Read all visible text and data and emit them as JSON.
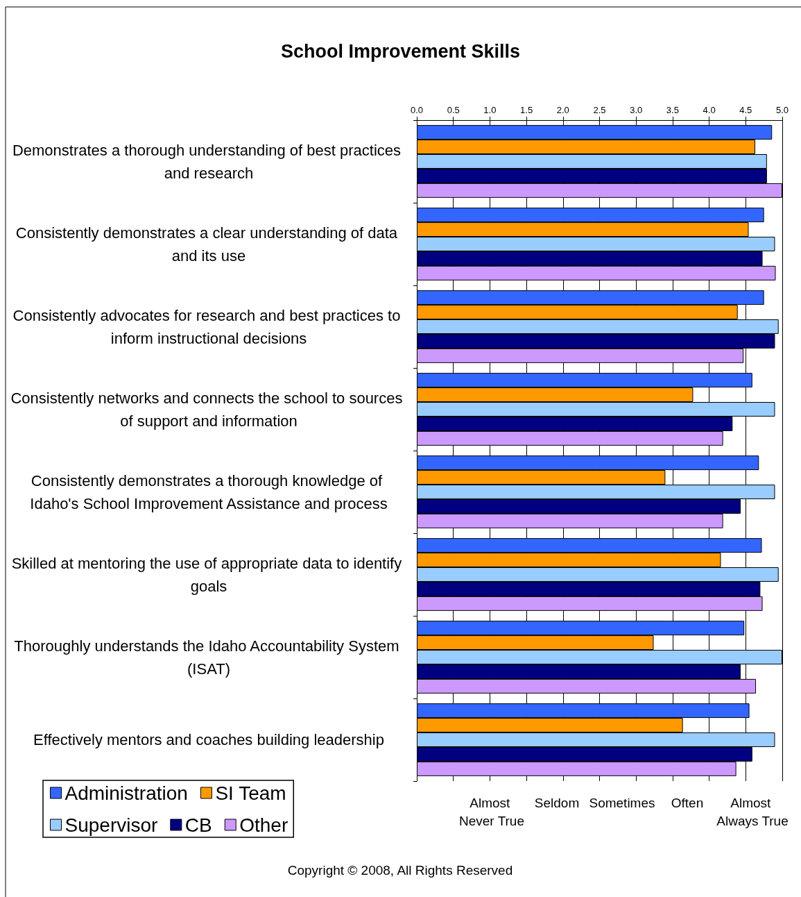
{
  "chart_data": {
    "type": "bar",
    "orientation": "horizontal",
    "title": "School Improvement Skills",
    "categories": [
      "Demonstrates a thorough understanding of best practices and research",
      "Consistently demonstrates a clear understanding of data and its use",
      "Consistently advocates for research and best practices to inform instructional decisions",
      "Consistently networks and connects the school to sources of support and information",
      "Consistently demonstrates a thorough knowledge of Idaho's School Improvement Assistance and process",
      "Skilled at mentoring the use of appropriate data to identify goals",
      "Thoroughly understands the Idaho Accountability System (ISAT)",
      "Effectively mentors and coaches building leadership"
    ],
    "series": [
      {
        "name": "Administration",
        "color": "#3366ff",
        "values": [
          4.86,
          4.75,
          4.75,
          4.59,
          4.68,
          4.72,
          4.48,
          4.55
        ]
      },
      {
        "name": "SI Team",
        "color": "#ff9900",
        "values": [
          4.63,
          4.54,
          4.39,
          3.78,
          3.4,
          4.16,
          3.24,
          3.64
        ]
      },
      {
        "name": "Supervisor",
        "color": "#99ccff",
        "values": [
          4.79,
          4.9,
          4.95,
          4.9,
          4.9,
          4.95,
          5.0,
          4.9
        ]
      },
      {
        "name": "CB",
        "color": "#000080",
        "values": [
          4.79,
          4.73,
          4.9,
          4.32,
          4.43,
          4.7,
          4.43,
          4.59
        ]
      },
      {
        "name": "Other",
        "color": "#cc99ff",
        "values": [
          5.0,
          4.91,
          4.47,
          4.19,
          4.19,
          4.73,
          4.64,
          4.37
        ]
      }
    ],
    "xlim": [
      0,
      5
    ],
    "xticks": [
      {
        "value": 0,
        "label": "0.0"
      },
      0.5,
      {
        "value": 1,
        "label": "1.0"
      },
      1.5,
      {
        "value": 2,
        "label": "2.0"
      },
      2.5,
      {
        "value": 3,
        "label": "3.0"
      },
      3.5,
      {
        "value": 4,
        "label": "4.0"
      },
      4.5,
      {
        "value": 5,
        "label": "5.0"
      }
    ],
    "grid": "x",
    "legend": "bottom left",
    "annotations": [
      "Almost Never True",
      "Seldom",
      "Sometimes",
      "Often",
      "Almost Always True",
      "Copyright © 2008, All Rights Reserved"
    ]
  }
}
